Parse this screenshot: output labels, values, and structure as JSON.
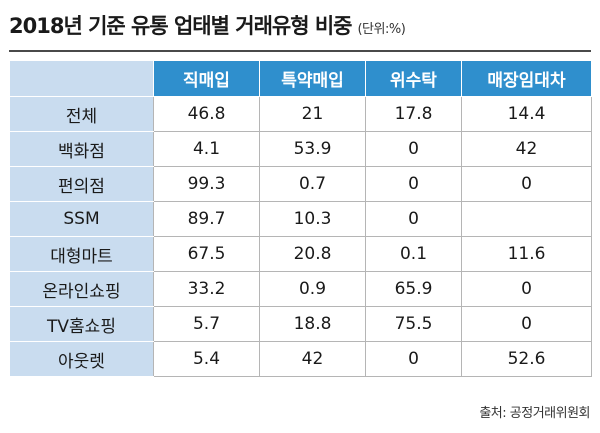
{
  "header": {
    "title": "2018년 기준 유통 업태별 거래유형 비중",
    "unit": "(단위:%)"
  },
  "table": {
    "columns": [
      "",
      "직매입",
      "특약매입",
      "위수탁",
      "매장임대차"
    ],
    "rows": [
      {
        "label": "전체",
        "values": [
          "46.8",
          "21",
          "17.8",
          "14.4"
        ]
      },
      {
        "label": "백화점",
        "values": [
          "4.1",
          "53.9",
          "0",
          "42"
        ]
      },
      {
        "label": "편의점",
        "values": [
          "99.3",
          "0.7",
          "0",
          "0"
        ]
      },
      {
        "label": "SSM",
        "values": [
          "89.7",
          "10.3",
          "0",
          ""
        ]
      },
      {
        "label": "대형마트",
        "values": [
          "67.5",
          "20.8",
          "0.1",
          "11.6"
        ]
      },
      {
        "label": "온라인쇼핑",
        "values": [
          "33.2",
          "0.9",
          "65.9",
          "0"
        ]
      },
      {
        "label": "TV홈쇼핑",
        "values": [
          "5.7",
          "18.8",
          "75.5",
          "0"
        ]
      },
      {
        "label": "아웃렛",
        "values": [
          "5.4",
          "42",
          "0",
          "52.6"
        ]
      }
    ]
  },
  "footer": {
    "source": "출처: 공정거래위원회"
  },
  "colors": {
    "header_bg": "#2f8fcd",
    "row_label_bg": "#c9dcef"
  }
}
